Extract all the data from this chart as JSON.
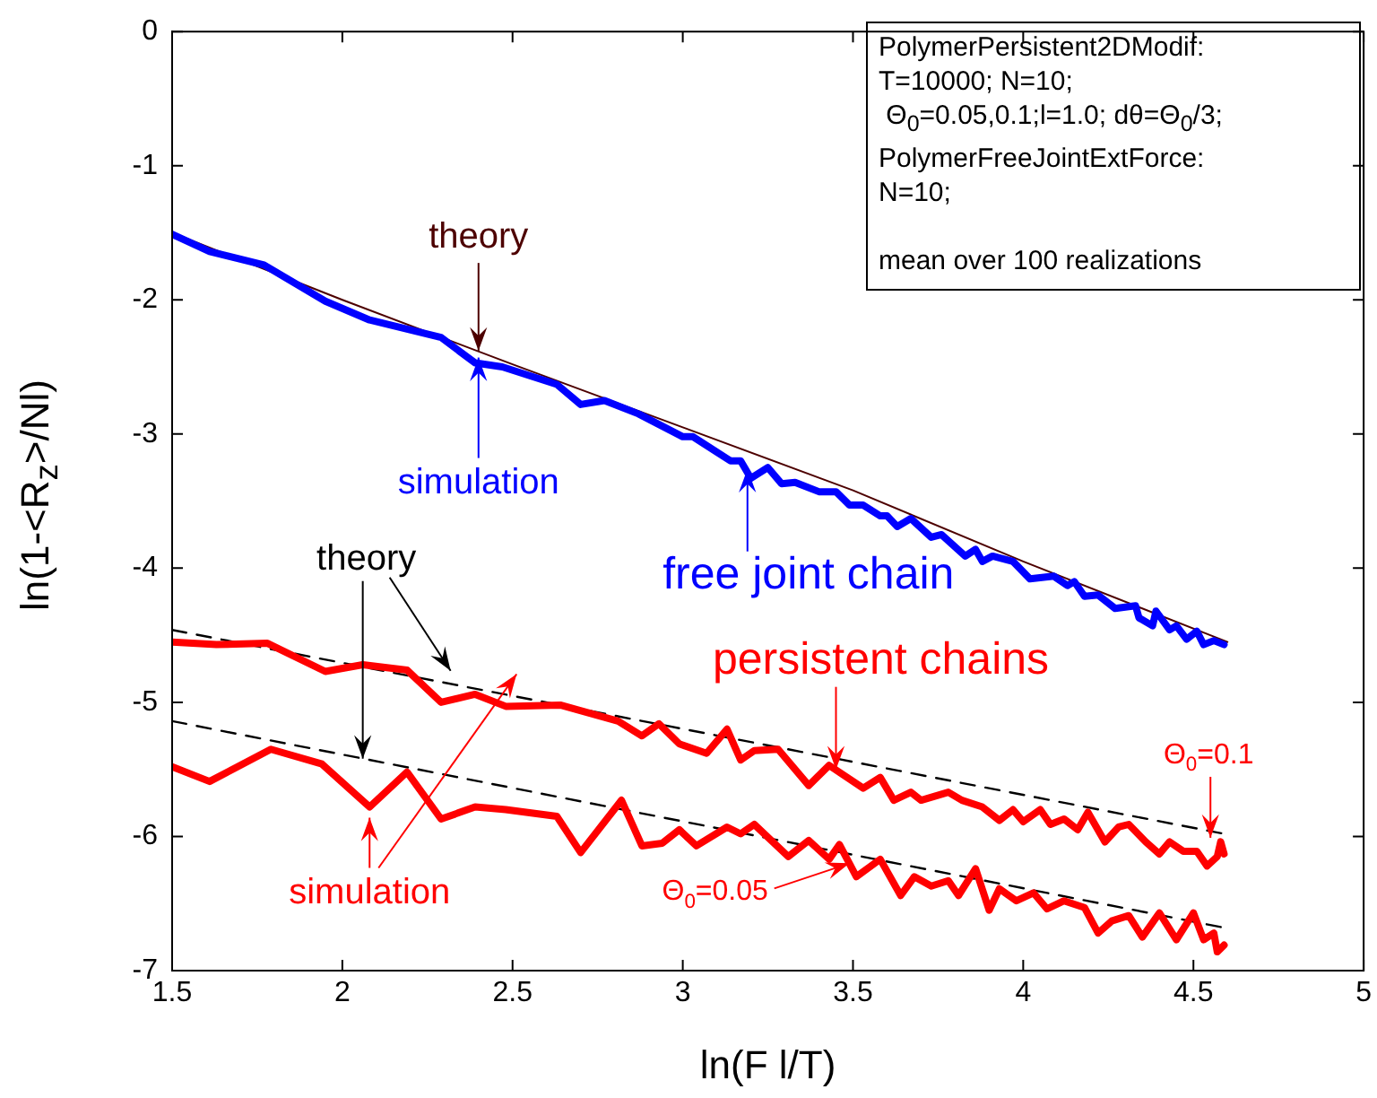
{
  "chart_data": {
    "type": "line",
    "xlabel": "ln(F l/T)",
    "ylabel": "ln(1-<R$_{z}$>/Nl)",
    "xlim": [
      1.5,
      5
    ],
    "xticks": [
      1.5,
      2,
      2.5,
      3,
      3.5,
      4,
      4.5,
      5
    ],
    "ylim": [
      -7,
      0
    ],
    "yticks": [
      -7,
      -6,
      -5,
      -4,
      -3,
      -2,
      -1,
      0
    ],
    "grid": false,
    "legend": false,
    "marker": "none",
    "series": [
      {
        "color": "#0000ff",
        "x": [
          1.5,
          1.61,
          1.77,
          1.95,
          2.08,
          2.29,
          2.39,
          2.47,
          2.63,
          2.7,
          2.77,
          2.87,
          3.0,
          3.03,
          3.14,
          3.17,
          3.2,
          3.25,
          3.29,
          3.33,
          3.4,
          3.45,
          3.49,
          3.53,
          3.58,
          3.6,
          3.63,
          3.67,
          3.73,
          3.76,
          3.83,
          3.86,
          3.88,
          3.91,
          3.97,
          4.02,
          4.09,
          4.13,
          4.15,
          4.18,
          4.22,
          4.27,
          4.33,
          4.34,
          4.38,
          4.39,
          4.43,
          4.45,
          4.48,
          4.51,
          4.53,
          4.56,
          4.59
        ],
        "values": [
          -1.51,
          -1.64,
          -1.74,
          -2.01,
          -2.15,
          -2.28,
          -2.47,
          -2.5,
          -2.63,
          -2.78,
          -2.75,
          -2.85,
          -3.02,
          -3.02,
          -3.2,
          -3.2,
          -3.33,
          -3.25,
          -3.37,
          -3.36,
          -3.43,
          -3.43,
          -3.53,
          -3.53,
          -3.61,
          -3.61,
          -3.69,
          -3.63,
          -3.77,
          -3.75,
          -3.91,
          -3.86,
          -3.95,
          -3.91,
          -3.95,
          -4.08,
          -4.06,
          -4.13,
          -4.1,
          -4.21,
          -4.2,
          -4.3,
          -4.28,
          -4.37,
          -4.43,
          -4.32,
          -4.46,
          -4.43,
          -4.53,
          -4.47,
          -4.57,
          -4.54,
          -4.57
        ]
      },
      {
        "color": "#4d0000",
        "x": [
          1.5,
          2.0,
          2.5,
          3.0,
          3.5,
          4.0,
          4.6
        ],
        "values": [
          -1.5,
          -2.0,
          -2.48,
          -2.95,
          -3.42,
          -3.95,
          -4.55
        ]
      },
      {
        "color": "#ff0000",
        "x": [
          1.5,
          1.63,
          1.78,
          1.95,
          2.06,
          2.19,
          2.29,
          2.39,
          2.48,
          2.64,
          2.81,
          2.88,
          2.93,
          2.99,
          3.07,
          3.13,
          3.17,
          3.21,
          3.28,
          3.37,
          3.43,
          3.53,
          3.58,
          3.62,
          3.67,
          3.7,
          3.74,
          3.78,
          3.82,
          3.88,
          3.93,
          3.97,
          4.0,
          4.05,
          4.08,
          4.12,
          4.16,
          4.19,
          4.24,
          4.28,
          4.31,
          4.36,
          4.4,
          4.43,
          4.47,
          4.51,
          4.54,
          4.57,
          4.58,
          4.59
        ],
        "values": [
          -4.55,
          -4.57,
          -4.56,
          -4.77,
          -4.72,
          -4.76,
          -5.0,
          -4.94,
          -5.03,
          -5.02,
          -5.14,
          -5.25,
          -5.16,
          -5.31,
          -5.38,
          -5.2,
          -5.43,
          -5.36,
          -5.35,
          -5.62,
          -5.47,
          -5.64,
          -5.56,
          -5.73,
          -5.67,
          -5.73,
          -5.7,
          -5.67,
          -5.73,
          -5.78,
          -5.88,
          -5.8,
          -5.89,
          -5.8,
          -5.91,
          -5.87,
          -5.95,
          -5.82,
          -6.04,
          -5.93,
          -5.91,
          -6.04,
          -6.13,
          -6.04,
          -6.11,
          -6.11,
          -6.22,
          -6.15,
          -6.04,
          -6.13
        ]
      },
      {
        "color": "#ff0000",
        "x": [
          1.5,
          1.61,
          1.79,
          1.94,
          2.08,
          2.19,
          2.29,
          2.39,
          2.48,
          2.63,
          2.7,
          2.82,
          2.88,
          2.94,
          2.99,
          3.04,
          3.13,
          3.17,
          3.21,
          3.31,
          3.37,
          3.43,
          3.46,
          3.51,
          3.58,
          3.64,
          3.68,
          3.73,
          3.78,
          3.81,
          3.86,
          3.9,
          3.93,
          3.98,
          4.03,
          4.07,
          4.12,
          4.18,
          4.22,
          4.26,
          4.31,
          4.35,
          4.4,
          4.45,
          4.5,
          4.53,
          4.56,
          4.57,
          4.59
        ],
        "values": [
          -5.48,
          -5.59,
          -5.35,
          -5.46,
          -5.78,
          -5.52,
          -5.87,
          -5.78,
          -5.8,
          -5.85,
          -6.12,
          -5.73,
          -6.07,
          -6.05,
          -5.95,
          -6.07,
          -5.93,
          -5.98,
          -5.91,
          -6.15,
          -6.03,
          -6.17,
          -6.06,
          -6.3,
          -6.17,
          -6.44,
          -6.3,
          -6.37,
          -6.33,
          -6.44,
          -6.24,
          -6.55,
          -6.39,
          -6.48,
          -6.42,
          -6.54,
          -6.48,
          -6.53,
          -6.72,
          -6.63,
          -6.59,
          -6.75,
          -6.57,
          -6.77,
          -6.57,
          -6.77,
          -6.72,
          -6.86,
          -6.81
        ]
      },
      {
        "color": "#000000",
        "line_style": "dashed",
        "x": [
          1.5,
          4.59
        ],
        "values": [
          -4.46,
          -5.98
        ]
      },
      {
        "color": "#000000",
        "line_style": "dashed",
        "x": [
          1.5,
          4.59
        ],
        "values": [
          -5.14,
          -6.68
        ]
      }
    ],
    "annotations": [
      {
        "text": "theory",
        "x": 2.4,
        "y": -2.38
      },
      {
        "text": "simulation",
        "x": 2.4,
        "y": -2.43
      },
      {
        "text": "free joint chain",
        "x": 3.19,
        "y": -3.26
      },
      {
        "text": "theory",
        "x": 2.06,
        "y": -5.42
      },
      {
        "text": "simulation",
        "x": 2.08,
        "y": -5.86
      },
      {
        "text": "persistent chains",
        "x": 3.45,
        "y": -5.5
      },
      {
        "text": "Θ$_{0}$=0.05",
        "x": 3.49,
        "y": -6.2
      },
      {
        "text": "Θ$_{0}$=0.1",
        "x": 4.55,
        "y": -6.01
      },
      "PolymerPersistent2DModif:\nT=10000; N=10;\n Θ$_{0}$=0.05,0.1;l=1.0; dθ=Θ$_{0}$/3;\nPolymerFreeJointExtForce:\nN=10;\n\nmean over 100 realizations"
    ]
  }
}
